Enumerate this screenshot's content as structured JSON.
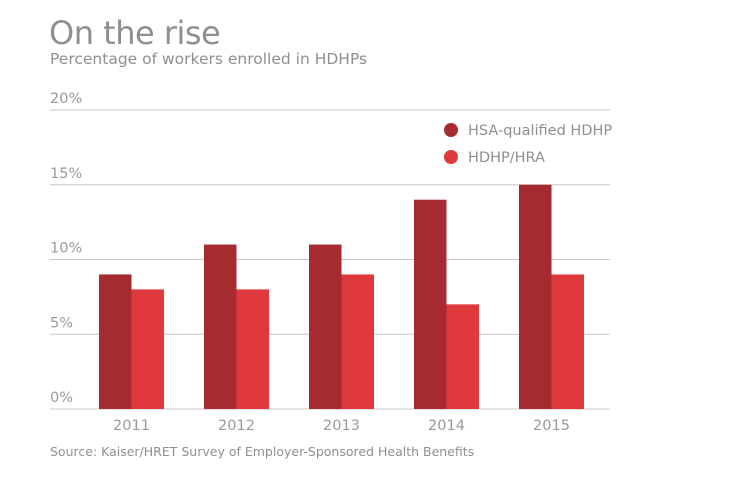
{
  "title": "On the rise",
  "subtitle": "Percentage of workers enrolled in HDHPs",
  "source": "Source: Kaiser/HRET Survey of Employer-Sponsored Health Benefits",
  "chart_data": {
    "type": "bar",
    "title": "On the rise",
    "subtitle": "Percentage of workers enrolled in HDHPs",
    "categories": [
      "2011",
      "2012",
      "2013",
      "2014",
      "2015"
    ],
    "series": [
      {
        "name": "HSA-qualified HDHP",
        "values": [
          9,
          11,
          11,
          14,
          15
        ],
        "color": "#a52b30"
      },
      {
        "name": "HDHP/HRA",
        "values": [
          8,
          8,
          9,
          7,
          9
        ],
        "color": "#e0393b"
      }
    ],
    "yticks": [
      0,
      5,
      10,
      15,
      20
    ],
    "ytick_labels": [
      "0%",
      "5%",
      "10%",
      "15%",
      "20%"
    ],
    "ylim": [
      0,
      20
    ],
    "xlabel": "",
    "ylabel": "",
    "grid": true,
    "legend_position": "top-right"
  }
}
